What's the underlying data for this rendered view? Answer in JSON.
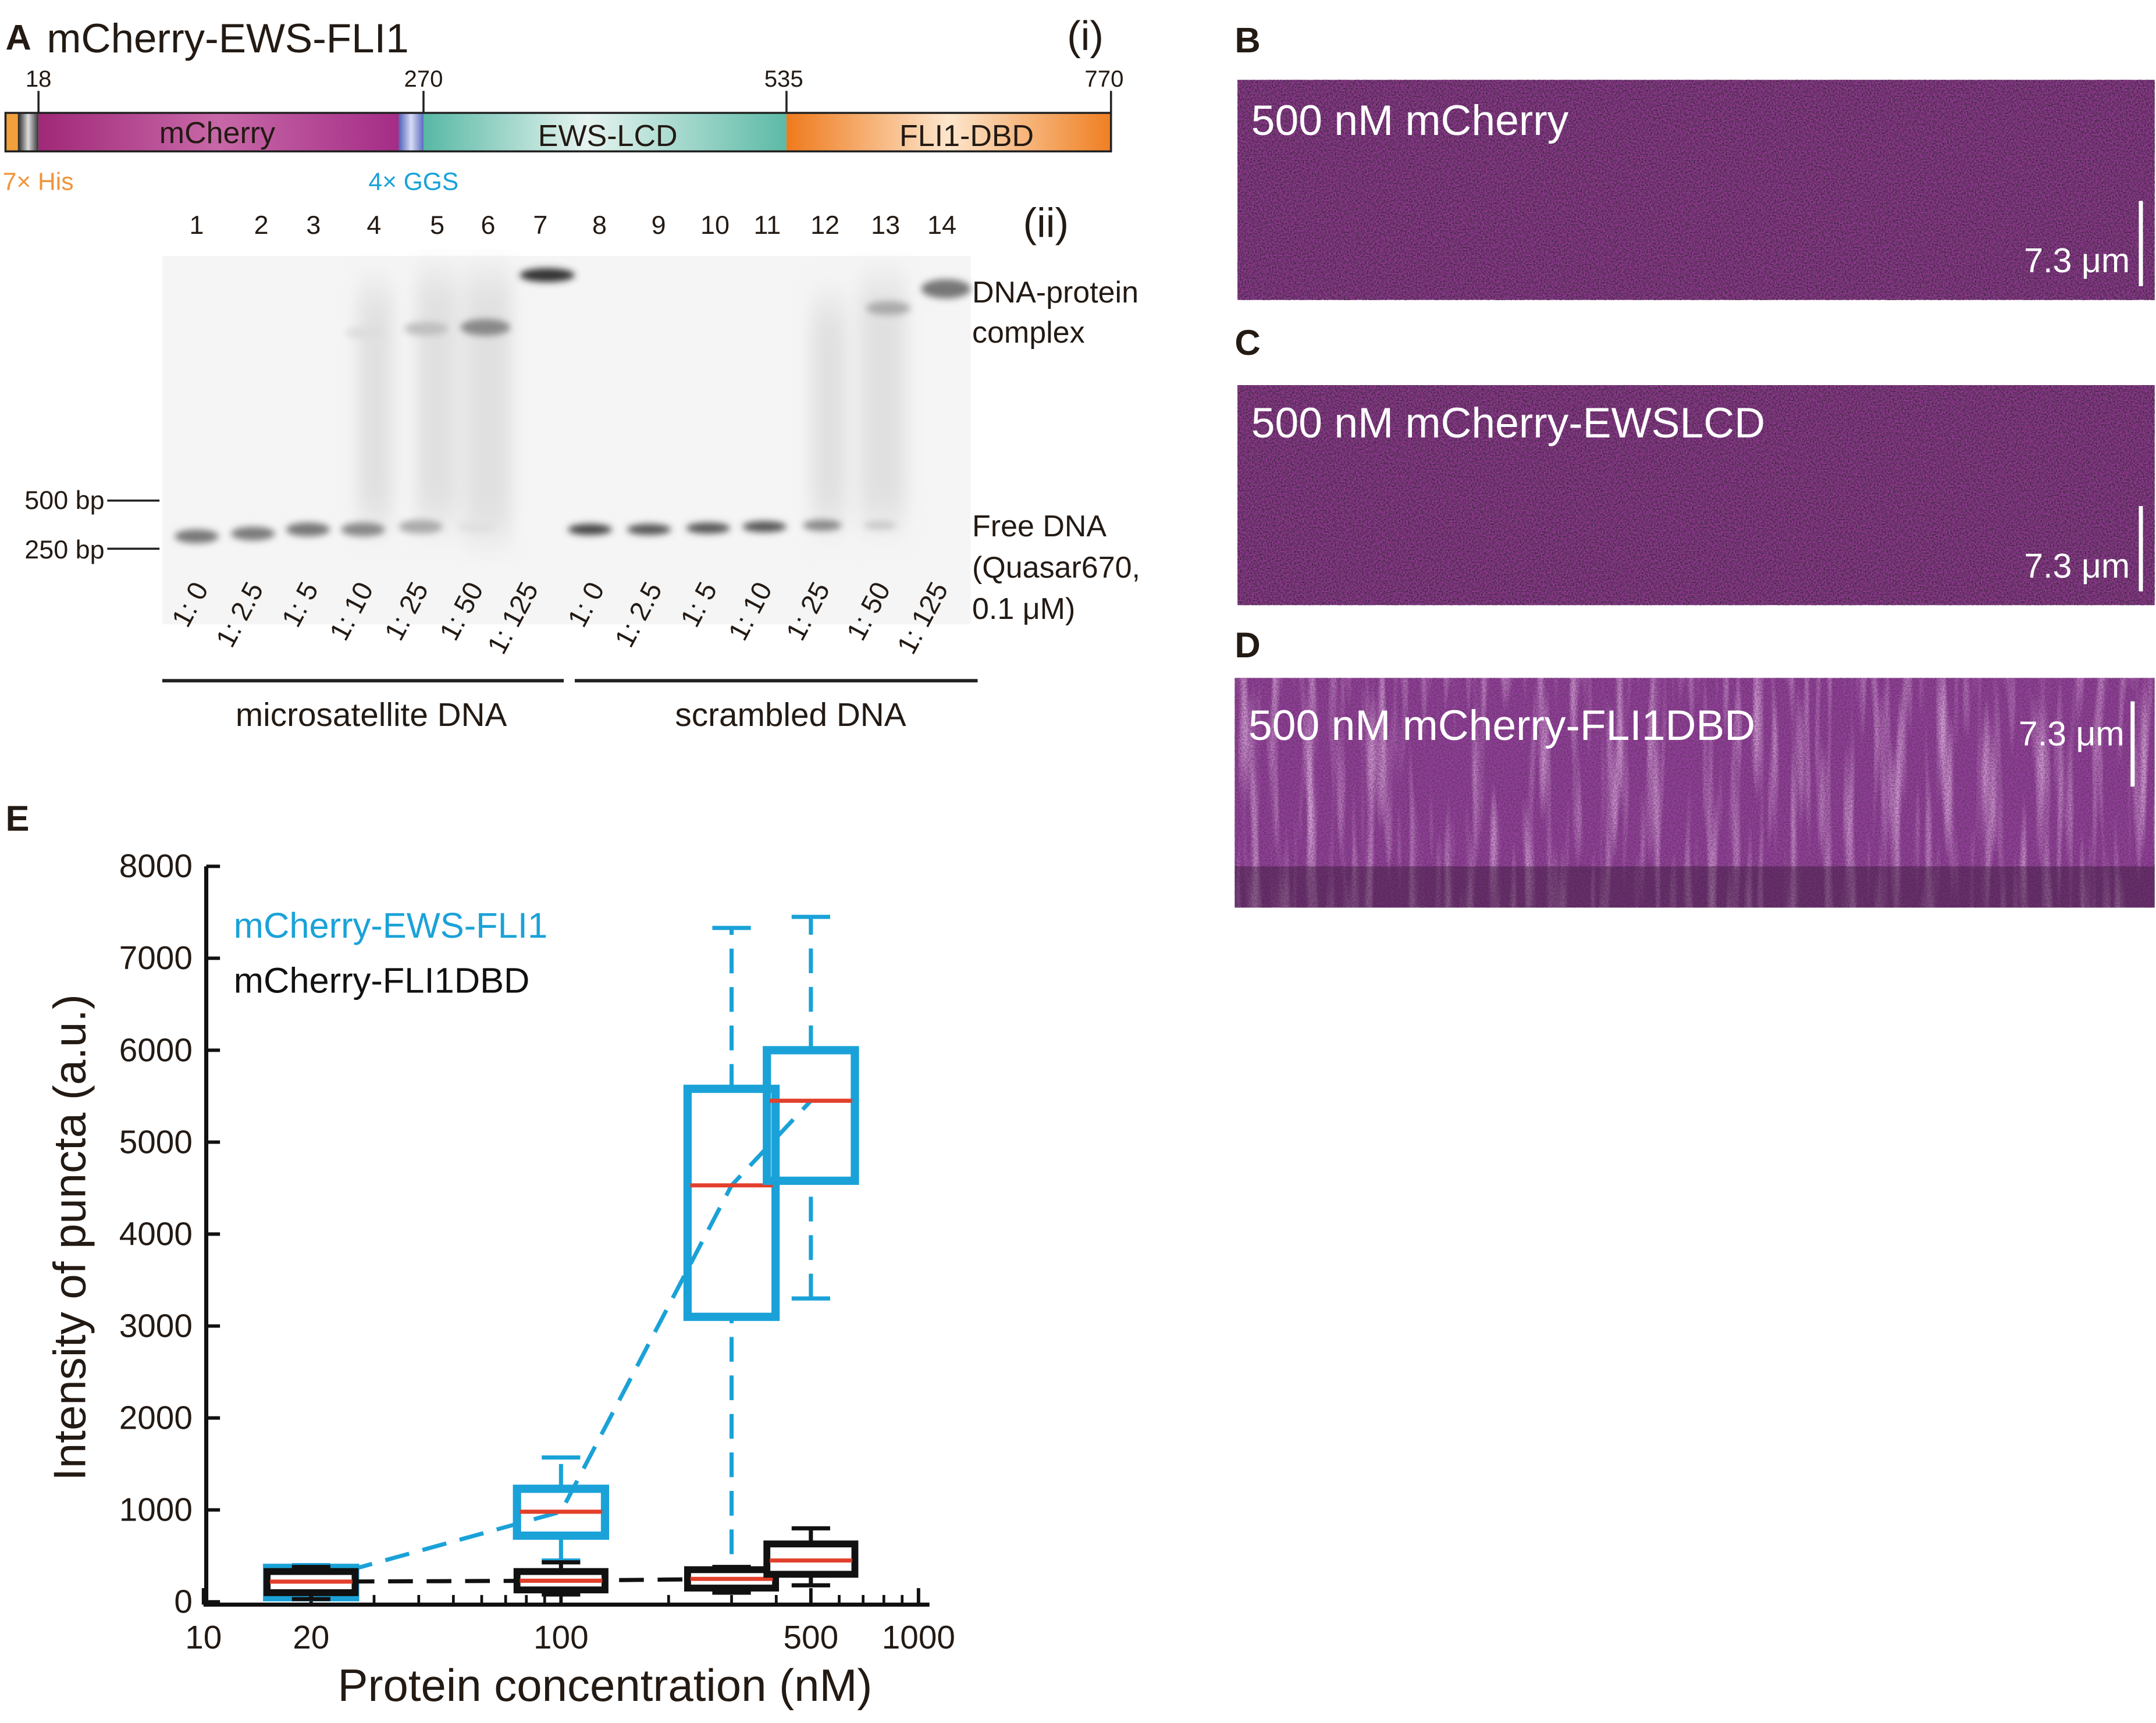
{
  "panel_a": {
    "label": "A",
    "title": "mCherry-EWS-FLI1",
    "part_i": "(i)",
    "residues": [
      18,
      270,
      535,
      770
    ],
    "domains": [
      "mCherry",
      "EWS-LCD",
      "FLI1-DBD"
    ],
    "tags": [
      "7× His",
      "4× GGS"
    ],
    "part_ii": "(ii)",
    "lanes": [
      1,
      2,
      3,
      4,
      5,
      6,
      7,
      8,
      9,
      10,
      11,
      12,
      13,
      14
    ],
    "markers": [
      "500 bp",
      "250 bp"
    ],
    "complex_label": [
      "DNA-protein",
      "complex"
    ],
    "free_label": [
      "Free DNA",
      "(Quasar670,",
      "0.1 μM)"
    ],
    "groups": [
      {
        "name": "microsatellite DNA",
        "ratios": [
          "1: 0",
          "1: 2.5",
          "1: 5",
          "1: 10",
          "1: 25",
          "1: 50",
          "1: 125"
        ]
      },
      {
        "name": "scrambled DNA",
        "ratios": [
          "1: 0",
          "1: 2.5",
          "1: 5",
          "1: 10",
          "1: 25",
          "1: 50",
          "1: 125"
        ]
      }
    ]
  },
  "images": [
    {
      "label": "B",
      "caption": "500 nM mCherry",
      "scale_bar": "7.3 μm"
    },
    {
      "label": "C",
      "caption": "500 nM mCherry-EWSLCD",
      "scale_bar": "7.3 μm"
    },
    {
      "label": "D",
      "caption": "500 nM mCherry-FLI1DBD",
      "scale_bar": "7.3 μm"
    }
  ],
  "chart_data": {
    "type": "box",
    "label": "E",
    "x_label": "Protein concentration (nM)",
    "y_label": "Intensity of puncta (a.u.)",
    "x_scale": "log",
    "xlim": [
      10,
      1000
    ],
    "xticks": [
      10,
      20,
      100,
      500,
      1000
    ],
    "xminorticks": [
      30,
      40,
      50,
      60,
      70,
      80,
      90,
      200,
      300,
      400,
      600,
      700,
      800,
      900
    ],
    "ylim": [
      0,
      8000
    ],
    "yticks": [
      0,
      1000,
      2000,
      3000,
      4000,
      5000,
      6000,
      7000,
      8000
    ],
    "median_color": "#e2402c",
    "series": [
      {
        "name": "mCherry-EWS-FLI1",
        "color": "#1aa2d8",
        "x": [
          20,
          100,
          300,
          500
        ],
        "low": [
          30,
          450,
          100,
          3300
        ],
        "q1": [
          50,
          720,
          3100,
          4580
        ],
        "median": [
          230,
          980,
          4530,
          5450
        ],
        "q3": [
          370,
          1230,
          5580,
          6000
        ],
        "high": [
          400,
          1570,
          7330,
          7450
        ]
      },
      {
        "name": "mCherry-FLI1DBD",
        "color": "#111111",
        "x": [
          20,
          100,
          300,
          500
        ],
        "low": [
          30,
          80,
          100,
          180
        ],
        "q1": [
          100,
          130,
          150,
          300
        ],
        "median": [
          220,
          230,
          250,
          450
        ],
        "q3": [
          330,
          330,
          350,
          630
        ],
        "high": [
          380,
          430,
          380,
          800
        ]
      }
    ]
  }
}
